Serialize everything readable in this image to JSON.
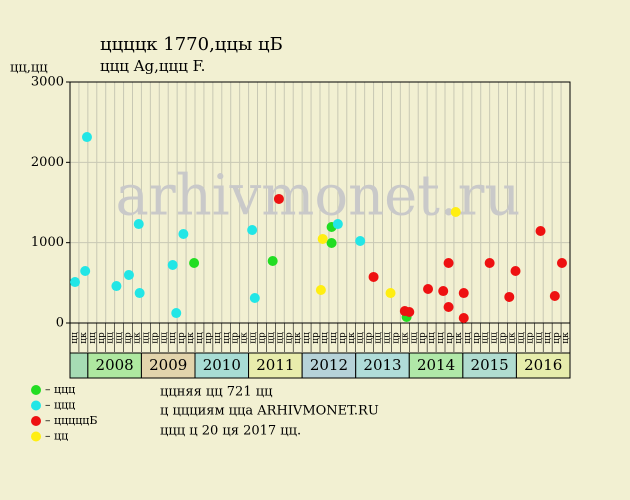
{
  "chart_data": {
    "type": "scatter",
    "title": "ццццк 1770,ццы цБ",
    "subtitle": "ццц Ag,ццц F.",
    "y_label": "цц,цц",
    "watermark": "arhivmonet.ru",
    "notes": [
      "ццняя цц 721 цц",
      "ц ццциям ццa ARHIVMONET.RU",
      "ццц ц 20 ця 2017 цц."
    ],
    "xlim": [
      0,
      56
    ],
    "ylim": [
      0,
      3000
    ],
    "yticks": [
      0,
      1000,
      2000,
      3000
    ],
    "grid": true,
    "column_labels": [
      "цц",
      "цк",
      "цц",
      "цр",
      "цц",
      "цц",
      "цр",
      "цк",
      "цц",
      "цр",
      "цц",
      "цц",
      "цр",
      "цк",
      "цц",
      "цр",
      "цц",
      "цц",
      "цр",
      "цк",
      "цц",
      "цр",
      "цц",
      "цц",
      "цр",
      "цк",
      "цц",
      "цр",
      "цц",
      "цц",
      "цр",
      "цк",
      "цц",
      "цр",
      "цц",
      "цц",
      "цр",
      "цк",
      "цц",
      "цр",
      "цц",
      "цц",
      "цр",
      "цк",
      "цц",
      "цр",
      "цц",
      "цц",
      "цр",
      "цк",
      "цц",
      "цр",
      "цц",
      "цц",
      "цр",
      "цк"
    ],
    "year_bands": {
      "labels": [
        null,
        "2008",
        "2009",
        "2010",
        "2011",
        "2012",
        "2013",
        "2014",
        "2015",
        "2016"
      ],
      "spans": [
        2,
        6,
        6,
        6,
        6,
        6,
        6,
        6,
        6,
        6
      ],
      "colors": [
        "#a6dcb4",
        "#aee8a0",
        "#e2d4ac",
        "#a8dcd4",
        "#e8ecac",
        "#b6d2d8",
        "#b0dcd8",
        "#b0e8a8",
        "#b0dcd0",
        "#e6ecac"
      ]
    },
    "series": [
      {
        "name": "– ццц",
        "color": "#22dd22",
        "x": [
          13.9,
          22.7,
          29.3,
          29.3,
          37.7
        ],
        "values": [
          747,
          772,
          1195,
          996,
          75
        ]
      },
      {
        "name": "– ццц",
        "color": "#22e6e6",
        "x": [
          0.56,
          1.7,
          1.9,
          5.2,
          6.6,
          7.7,
          7.8,
          11.5,
          11.9,
          12.7,
          20.4,
          20.7,
          30.0,
          32.5
        ],
        "values": [
          510,
          647,
          2315,
          460,
          598,
          1232,
          373,
          722,
          124,
          1108,
          1158,
          311,
          1232,
          1021
        ]
      },
      {
        "name": "– цццццБ",
        "color": "#ee1111",
        "x": [
          23.4,
          34.0,
          37.5,
          38.0,
          40.1,
          41.8,
          42.4,
          42.4,
          44.1,
          44.1,
          47.0,
          49.2,
          49.9,
          52.7,
          54.3,
          55.1
        ],
        "values": [
          1544,
          573,
          149,
          137,
          423,
          398,
          747,
          199,
          373,
          62,
          747,
          324,
          647,
          1145,
          336,
          747
        ]
      },
      {
        "name": "– цц",
        "color": "#ffee11",
        "x": [
          28.3,
          28.1,
          35.9,
          43.2
        ],
        "values": [
          1046,
          411,
          373,
          1382
        ]
      }
    ]
  }
}
